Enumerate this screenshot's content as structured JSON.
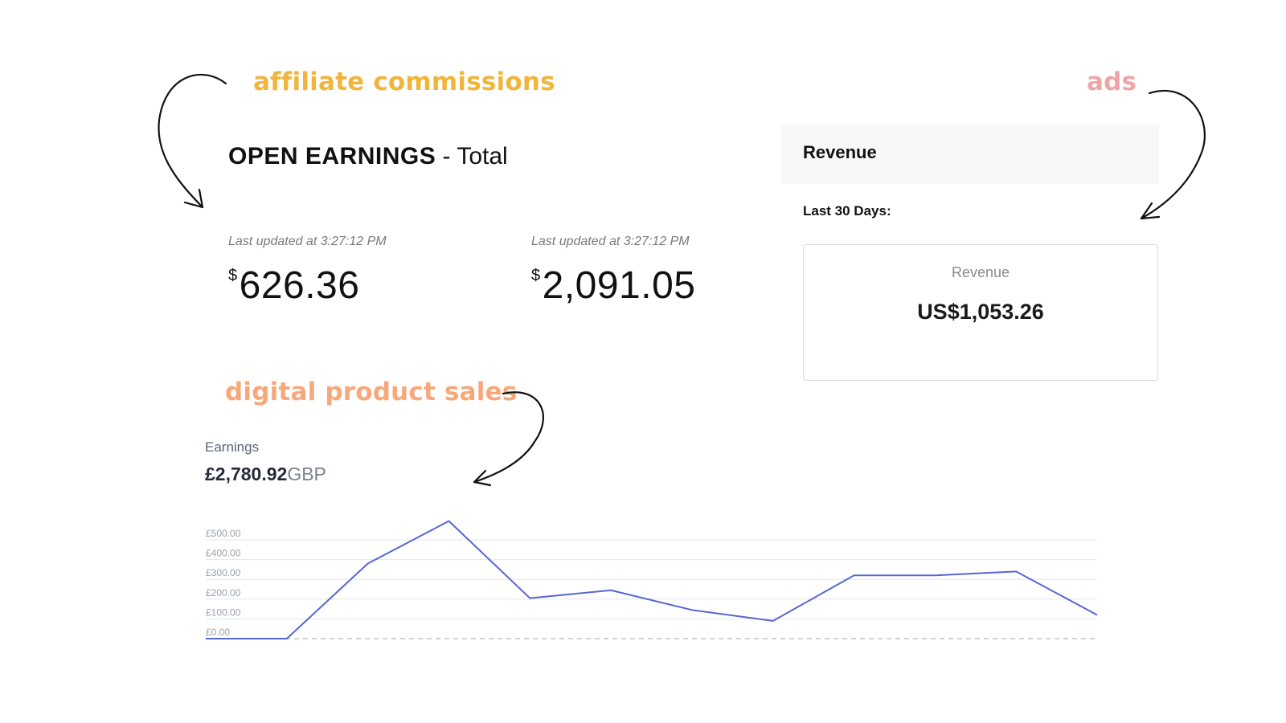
{
  "labels": {
    "affiliate": "affiliate commissions",
    "ads": "ads",
    "digital": "digital product sales"
  },
  "colors": {
    "affiliate": "#f2b53c",
    "ads": "#f0a5a5",
    "digital": "#f7a87a",
    "line": "#5566d6"
  },
  "open_earnings": {
    "title_strong": "OPEN EARNINGS",
    "title_rest": " - Total",
    "cards": [
      {
        "updated": "Last updated at 3:27:12 PM",
        "currency": "$",
        "amount": "626.36"
      },
      {
        "updated": "Last updated at 3:27:12 PM",
        "currency": "$",
        "amount": "2,091.05"
      }
    ]
  },
  "ads_revenue": {
    "header": "Revenue",
    "period": "Last 30 Days:",
    "card_label": "Revenue",
    "card_value": "US$1,053.26"
  },
  "earnings": {
    "label": "Earnings",
    "total": "£2,780.92",
    "unit": "GBP"
  },
  "chart_data": {
    "type": "line",
    "title": "",
    "xlabel": "",
    "ylabel": "",
    "ylim": [
      0,
      500
    ],
    "ytick_labels": [
      "£500.00",
      "£400.00",
      "£300.00",
      "£200.00",
      "£100.00",
      "£0.00"
    ],
    "yticks": [
      500,
      400,
      300,
      200,
      100,
      0
    ],
    "grid": true,
    "series": [
      {
        "values": [
          0,
          0,
          380,
          595,
          205,
          245,
          145,
          90,
          320,
          320,
          340,
          120
        ]
      }
    ]
  }
}
